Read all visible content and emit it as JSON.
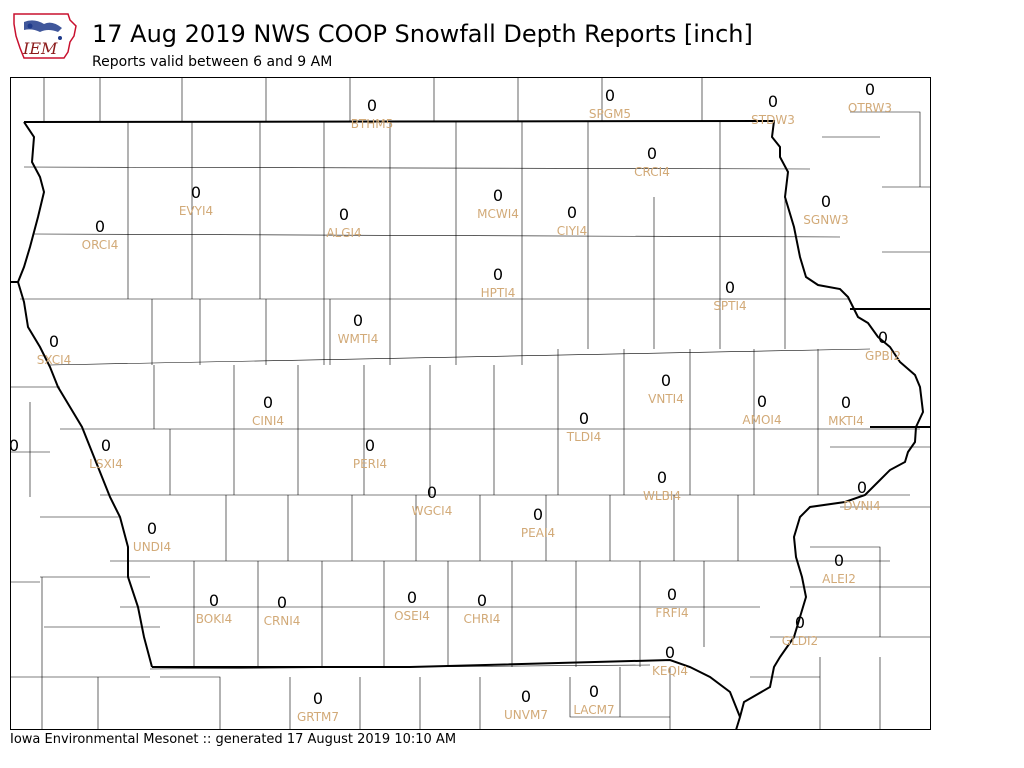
{
  "header": {
    "logo_text": "IEM",
    "title": "17 Aug 2019 NWS COOP Snowfall Depth Reports [inch]",
    "subtitle": "Reports valid between 6 and 9 AM"
  },
  "footer": {
    "text": "Iowa Environmental Mesonet :: generated 17 August 2019 10:10 AM"
  },
  "colors": {
    "value": "#000000",
    "station_id": "#d2aa78",
    "borders": "#000000",
    "logo_state": "#c8102e",
    "logo_text": "#8b1a1a"
  },
  "stations": [
    {
      "id": "BTHM5",
      "value": "0"
    },
    {
      "id": "SPGM5",
      "value": "0"
    },
    {
      "id": "STDW3",
      "value": "0"
    },
    {
      "id": "OTRW3",
      "value": "0"
    },
    {
      "id": "CRCI4",
      "value": "0"
    },
    {
      "id": "EVYI4",
      "value": "0"
    },
    {
      "id": "MCWI4",
      "value": "0"
    },
    {
      "id": "SGNW3",
      "value": "0"
    },
    {
      "id": "ORCI4",
      "value": "0"
    },
    {
      "id": "ALGI4",
      "value": "0"
    },
    {
      "id": "CIYI4",
      "value": "0"
    },
    {
      "id": "HPTI4",
      "value": "0"
    },
    {
      "id": "SPTI4",
      "value": "0"
    },
    {
      "id": "WMTI4",
      "value": "0"
    },
    {
      "id": "SXCI4",
      "value": "0"
    },
    {
      "id": "GPBI2",
      "value": "0"
    },
    {
      "id": "VNTI4",
      "value": "0"
    },
    {
      "id": "CINI4",
      "value": "0"
    },
    {
      "id": "AMOI4",
      "value": "0"
    },
    {
      "id": "MKTI4",
      "value": "0"
    },
    {
      "id": "TLDI4",
      "value": "0"
    },
    {
      "id": "LSXI4",
      "value": "0"
    },
    {
      "id": "PERI4",
      "value": "0"
    },
    {
      "id": "WLBI4",
      "value": "0"
    },
    {
      "id": "DVNI4",
      "value": "0"
    },
    {
      "id": "WGCI4",
      "value": "0"
    },
    {
      "id": "PEAI4",
      "value": "0"
    },
    {
      "id": "UNDI4",
      "value": "0"
    },
    {
      "id": "ALEI2",
      "value": "0"
    },
    {
      "id": "BOKI4",
      "value": "0"
    },
    {
      "id": "CRNI4",
      "value": "0"
    },
    {
      "id": "OSEI4",
      "value": "0"
    },
    {
      "id": "CHRI4",
      "value": "0"
    },
    {
      "id": "FRFI4",
      "value": "0"
    },
    {
      "id": "GLDI2",
      "value": "0"
    },
    {
      "id": "KEQI4",
      "value": "0"
    },
    {
      "id": "GRTM7",
      "value": "0"
    },
    {
      "id": "UNVM7",
      "value": "0"
    },
    {
      "id": "LACM7",
      "value": "0"
    },
    {
      "id": "",
      "value": "0"
    }
  ]
}
